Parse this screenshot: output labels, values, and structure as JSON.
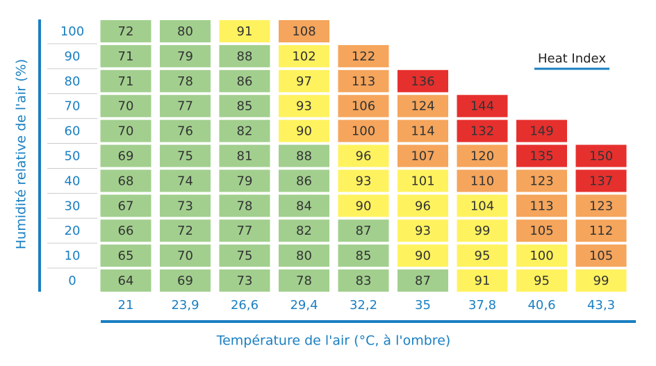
{
  "chart_data": {
    "type": "heatmap",
    "legend_title": "Heat Index",
    "x_label": "Température de l'air (°C, à l'ombre)",
    "y_label": "Humidité relative de l'air (%)",
    "x_categories": [
      "21",
      "23,9",
      "26,6",
      "29,4",
      "32,2",
      "35",
      "37,8",
      "40,6",
      "43,3"
    ],
    "y_categories": [
      100,
      90,
      80,
      70,
      60,
      50,
      40,
      30,
      20,
      10,
      0
    ],
    "values": [
      [
        72,
        80,
        91,
        108,
        null,
        null,
        null,
        null,
        null
      ],
      [
        71,
        79,
        88,
        102,
        122,
        null,
        null,
        null,
        null
      ],
      [
        71,
        78,
        86,
        97,
        113,
        136,
        null,
        null,
        null
      ],
      [
        70,
        77,
        85,
        93,
        106,
        124,
        144,
        null,
        null
      ],
      [
        70,
        76,
        82,
        90,
        100,
        114,
        132,
        149,
        null
      ],
      [
        69,
        75,
        81,
        88,
        96,
        107,
        120,
        135,
        150
      ],
      [
        68,
        74,
        79,
        86,
        93,
        101,
        110,
        123,
        137
      ],
      [
        67,
        73,
        78,
        84,
        90,
        96,
        104,
        113,
        123
      ],
      [
        66,
        72,
        77,
        82,
        87,
        93,
        99,
        105,
        112
      ],
      [
        65,
        70,
        75,
        80,
        85,
        90,
        95,
        100,
        105
      ],
      [
        64,
        69,
        73,
        78,
        83,
        87,
        91,
        95,
        99
      ]
    ],
    "colors": [
      [
        "#a2cf8e",
        "#a2cf8e",
        "#fff25f",
        "#f5a55c",
        null,
        null,
        null,
        null,
        null
      ],
      [
        "#a2cf8e",
        "#a2cf8e",
        "#a2cf8e",
        "#fff25f",
        "#f5a55c",
        null,
        null,
        null,
        null
      ],
      [
        "#a2cf8e",
        "#a2cf8e",
        "#a2cf8e",
        "#fff25f",
        "#f5a55c",
        "#e6302e",
        null,
        null,
        null
      ],
      [
        "#a2cf8e",
        "#a2cf8e",
        "#a2cf8e",
        "#fff25f",
        "#f5a55c",
        "#f5a55c",
        "#e6302e",
        null,
        null
      ],
      [
        "#a2cf8e",
        "#a2cf8e",
        "#a2cf8e",
        "#fff25f",
        "#f5a55c",
        "#f5a55c",
        "#e6302e",
        "#e6302e",
        null
      ],
      [
        "#a2cf8e",
        "#a2cf8e",
        "#a2cf8e",
        "#a2cf8e",
        "#fff25f",
        "#f5a55c",
        "#f5a55c",
        "#e6302e",
        "#e6302e"
      ],
      [
        "#a2cf8e",
        "#a2cf8e",
        "#a2cf8e",
        "#a2cf8e",
        "#fff25f",
        "#fff25f",
        "#f5a55c",
        "#f5a55c",
        "#e6302e"
      ],
      [
        "#a2cf8e",
        "#a2cf8e",
        "#a2cf8e",
        "#a2cf8e",
        "#fff25f",
        "#fff25f",
        "#fff25f",
        "#f5a55c",
        "#f5a55c"
      ],
      [
        "#a2cf8e",
        "#a2cf8e",
        "#a2cf8e",
        "#a2cf8e",
        "#a2cf8e",
        "#fff25f",
        "#fff25f",
        "#f5a55c",
        "#f5a55c"
      ],
      [
        "#a2cf8e",
        "#a2cf8e",
        "#a2cf8e",
        "#a2cf8e",
        "#a2cf8e",
        "#fff25f",
        "#fff25f",
        "#fff25f",
        "#f5a55c"
      ],
      [
        "#a2cf8e",
        "#a2cf8e",
        "#a2cf8e",
        "#a2cf8e",
        "#a2cf8e",
        "#a2cf8e",
        "#fff25f",
        "#fff25f",
        "#fff25f"
      ]
    ]
  }
}
